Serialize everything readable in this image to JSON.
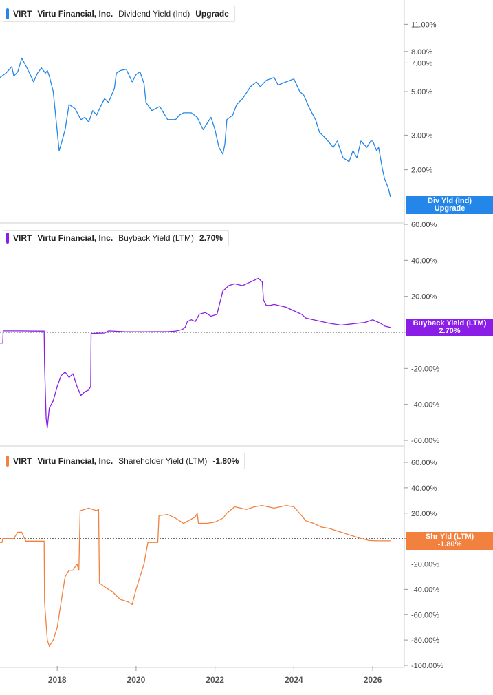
{
  "colors": {
    "dividend": "#2386e8",
    "buyback": "#8a1ee6",
    "shareholder": "#f2813f",
    "grid": "#d9d9d9",
    "axis_text": "#444444"
  },
  "x_axis": {
    "ticks": [
      "2018",
      "2020",
      "2022",
      "2024",
      "2026"
    ],
    "range": [
      2016.55,
      2026.8
    ]
  },
  "chart_data": [
    {
      "type": "line",
      "ticker": "VIRT",
      "company": "Virtu Financial, Inc.",
      "metric": "Dividend Yield (Ind)",
      "value": "Upgrade",
      "badge_title": "Div Yld (Ind)",
      "badge_value": "Upgrade",
      "scale": "log",
      "ylim": [
        1.3,
        13.5
      ],
      "y_ticks": [
        {
          "v": 11,
          "label": "11.00%"
        },
        {
          "v": 8,
          "label": "8.00%"
        },
        {
          "v": 7,
          "label": "7.00%"
        },
        {
          "v": 5,
          "label": "5.00%"
        },
        {
          "v": 3,
          "label": "3.00%"
        },
        {
          "v": 2,
          "label": "2.00%"
        }
      ],
      "zero_line": false,
      "series": [
        {
          "x": [
            2016.55,
            2016.7,
            2016.85,
            2016.9,
            2017.0,
            2017.1,
            2017.2,
            2017.3,
            2017.4,
            2017.5,
            2017.6,
            2017.7,
            2017.75,
            2017.8,
            2017.9,
            2018.05,
            2018.1,
            2018.2,
            2018.3,
            2018.45,
            2018.6,
            2018.7,
            2018.8,
            2018.9,
            2019.0,
            2019.1,
            2019.2,
            2019.3,
            2019.45,
            2019.5,
            2019.6,
            2019.75,
            2019.9,
            2020.0,
            2020.1,
            2020.2,
            2020.25,
            2020.4,
            2020.6,
            2020.8,
            2021.0,
            2021.1,
            2021.2,
            2021.4,
            2021.55,
            2021.7,
            2021.9,
            2022.0,
            2022.1,
            2022.2,
            2022.25,
            2022.3,
            2022.45,
            2022.55,
            2022.7,
            2022.9,
            2023.05,
            2023.15,
            2023.3,
            2023.5,
            2023.6,
            2023.8,
            2024.0,
            2024.15,
            2024.25,
            2024.4,
            2024.55,
            2024.65,
            2024.8,
            2025.0,
            2025.1,
            2025.25,
            2025.4,
            2025.5,
            2025.6,
            2025.7,
            2025.85,
            2025.95,
            2026.0,
            2026.1,
            2026.15,
            2026.25,
            2026.3,
            2026.4,
            2026.45
          ],
          "values": [
            5.9,
            6.2,
            6.7,
            6.0,
            6.3,
            7.4,
            6.8,
            6.2,
            5.6,
            6.2,
            6.6,
            6.2,
            6.4,
            6.0,
            5.0,
            2.5,
            2.7,
            3.2,
            4.3,
            4.1,
            3.6,
            3.7,
            3.5,
            4.0,
            3.8,
            4.2,
            4.6,
            4.4,
            5.2,
            6.2,
            6.4,
            6.5,
            5.6,
            6.1,
            6.3,
            5.5,
            4.4,
            4.0,
            4.2,
            3.6,
            3.6,
            3.8,
            3.9,
            3.9,
            3.7,
            3.2,
            3.7,
            3.2,
            2.6,
            2.4,
            2.7,
            3.6,
            3.8,
            4.3,
            4.6,
            5.3,
            5.6,
            5.3,
            5.7,
            5.9,
            5.4,
            5.6,
            5.8,
            5.0,
            4.8,
            4.1,
            3.6,
            3.1,
            2.9,
            2.6,
            2.8,
            2.3,
            2.2,
            2.5,
            2.3,
            2.8,
            2.6,
            2.8,
            2.8,
            2.5,
            2.6,
            2.0,
            1.8,
            1.6,
            1.45
          ]
        }
      ]
    },
    {
      "type": "line",
      "ticker": "VIRT",
      "company": "Virtu Financial, Inc.",
      "metric": "Buyback Yield (LTM)",
      "value": "2.70%",
      "badge_title": "Buyback Yield (LTM)",
      "badge_value": "2.70%",
      "scale": "linear",
      "ylim": [
        -60,
        60
      ],
      "y_ticks": [
        {
          "v": 60,
          "label": "60.00%"
        },
        {
          "v": 40,
          "label": "40.00%"
        },
        {
          "v": 20,
          "label": "20.00%"
        },
        {
          "v": 0,
          "label": "0.00%"
        },
        {
          "v": -20,
          "label": "-20.00%"
        },
        {
          "v": -40,
          "label": "-40.00%"
        },
        {
          "v": -60,
          "label": "-60.00%"
        }
      ],
      "zero_line": true,
      "series": [
        {
          "x": [
            2016.55,
            2016.62,
            2016.63,
            2017.0,
            2017.5,
            2017.67,
            2017.68,
            2017.72,
            2017.75,
            2017.8,
            2017.9,
            2018.0,
            2018.1,
            2018.2,
            2018.3,
            2018.4,
            2018.5,
            2018.6,
            2018.7,
            2018.8,
            2018.85,
            2018.86,
            2019.2,
            2019.3,
            2019.7,
            2020.0,
            2020.2,
            2020.5,
            2020.8,
            2021.0,
            2021.15,
            2021.2,
            2021.25,
            2021.3,
            2021.4,
            2021.5,
            2021.6,
            2021.75,
            2021.9,
            2022.05,
            2022.2,
            2022.3,
            2022.35,
            2022.5,
            2022.7,
            2022.9,
            2023.0,
            2023.1,
            2023.2,
            2023.23,
            2023.3,
            2023.4,
            2023.5,
            2023.6,
            2023.8,
            2023.9,
            2024.0,
            2024.2,
            2024.3,
            2024.5,
            2024.7,
            2024.9,
            2025.2,
            2025.4,
            2025.6,
            2025.8,
            2026.0,
            2026.2,
            2026.3,
            2026.45
          ],
          "values": [
            -6,
            -6,
            0.8,
            0.8,
            0.7,
            0.7,
            -18,
            -48,
            -53,
            -42,
            -38,
            -30,
            -24,
            -22,
            -25,
            -23,
            -30,
            -35,
            -33,
            -32,
            -30,
            -0.6,
            -0.4,
            0.8,
            0.4,
            0.3,
            0.3,
            0.4,
            0.4,
            0.7,
            1.5,
            2,
            3,
            6,
            7,
            6,
            10,
            11,
            9,
            10,
            23,
            25,
            26,
            27,
            26,
            28,
            29,
            30,
            28,
            18,
            15,
            15,
            15.5,
            15,
            14,
            13,
            12,
            10,
            8,
            7,
            6,
            5,
            4,
            4.5,
            5,
            5.5,
            7,
            5,
            3.5,
            2.7
          ]
        }
      ]
    },
    {
      "type": "line",
      "ticker": "VIRT",
      "company": "Virtu Financial, Inc.",
      "metric": "Shareholder Yield (LTM)",
      "value": "-1.80%",
      "badge_title": "Shr Yld (LTM)",
      "badge_value": "-1.80%",
      "scale": "linear",
      "ylim": [
        -100,
        60
      ],
      "y_ticks": [
        {
          "v": 60,
          "label": "60.00%"
        },
        {
          "v": 40,
          "label": "40.00%"
        },
        {
          "v": 20,
          "label": "20.00%"
        },
        {
          "v": 0,
          "label": "0.00%"
        },
        {
          "v": -20,
          "label": "-20.00%"
        },
        {
          "v": -40,
          "label": "-40.00%"
        },
        {
          "v": -60,
          "label": "-60.00%"
        },
        {
          "v": -80,
          "label": "-80.00%"
        },
        {
          "v": -100,
          "label": "-100.00%"
        }
      ],
      "zero_line": true,
      "series": [
        {
          "x": [
            2016.55,
            2016.6,
            2016.62,
            2016.9,
            2017.0,
            2017.1,
            2017.2,
            2017.4,
            2017.55,
            2017.67,
            2017.68,
            2017.75,
            2017.8,
            2017.9,
            2018.0,
            2018.1,
            2018.2,
            2018.3,
            2018.4,
            2018.5,
            2018.55,
            2018.58,
            2018.8,
            2019.0,
            2019.05,
            2019.07,
            2019.2,
            2019.4,
            2019.6,
            2019.8,
            2019.9,
            2020.0,
            2020.2,
            2020.3,
            2020.55,
            2020.58,
            2020.8,
            2021.0,
            2021.2,
            2021.5,
            2021.55,
            2021.58,
            2021.8,
            2022.0,
            2022.2,
            2022.3,
            2022.5,
            2022.8,
            2023.0,
            2023.2,
            2023.5,
            2023.8,
            2024.0,
            2024.2,
            2024.3,
            2024.5,
            2024.7,
            2024.9,
            2025.1,
            2025.3,
            2025.5,
            2025.7,
            2025.85,
            2025.9,
            2026.1,
            2026.3,
            2026.45
          ],
          "values": [
            -3,
            -3,
            0,
            0,
            5,
            5,
            -2,
            -2,
            -2,
            -2,
            -50,
            -80,
            -85,
            -80,
            -70,
            -50,
            -30,
            -25,
            -25,
            -20,
            -25,
            22,
            24,
            22,
            23,
            -35,
            -38,
            -42,
            -48,
            -50,
            -52,
            -40,
            -20,
            -3,
            -3,
            18,
            19,
            16,
            12,
            17,
            20,
            12,
            12,
            13,
            16,
            20,
            25,
            23,
            25,
            26,
            24,
            26,
            25,
            18,
            14,
            12,
            9,
            8,
            6,
            4,
            2,
            0,
            -1,
            -1.5,
            -1.8,
            -1.8,
            -1.8
          ]
        }
      ]
    }
  ]
}
